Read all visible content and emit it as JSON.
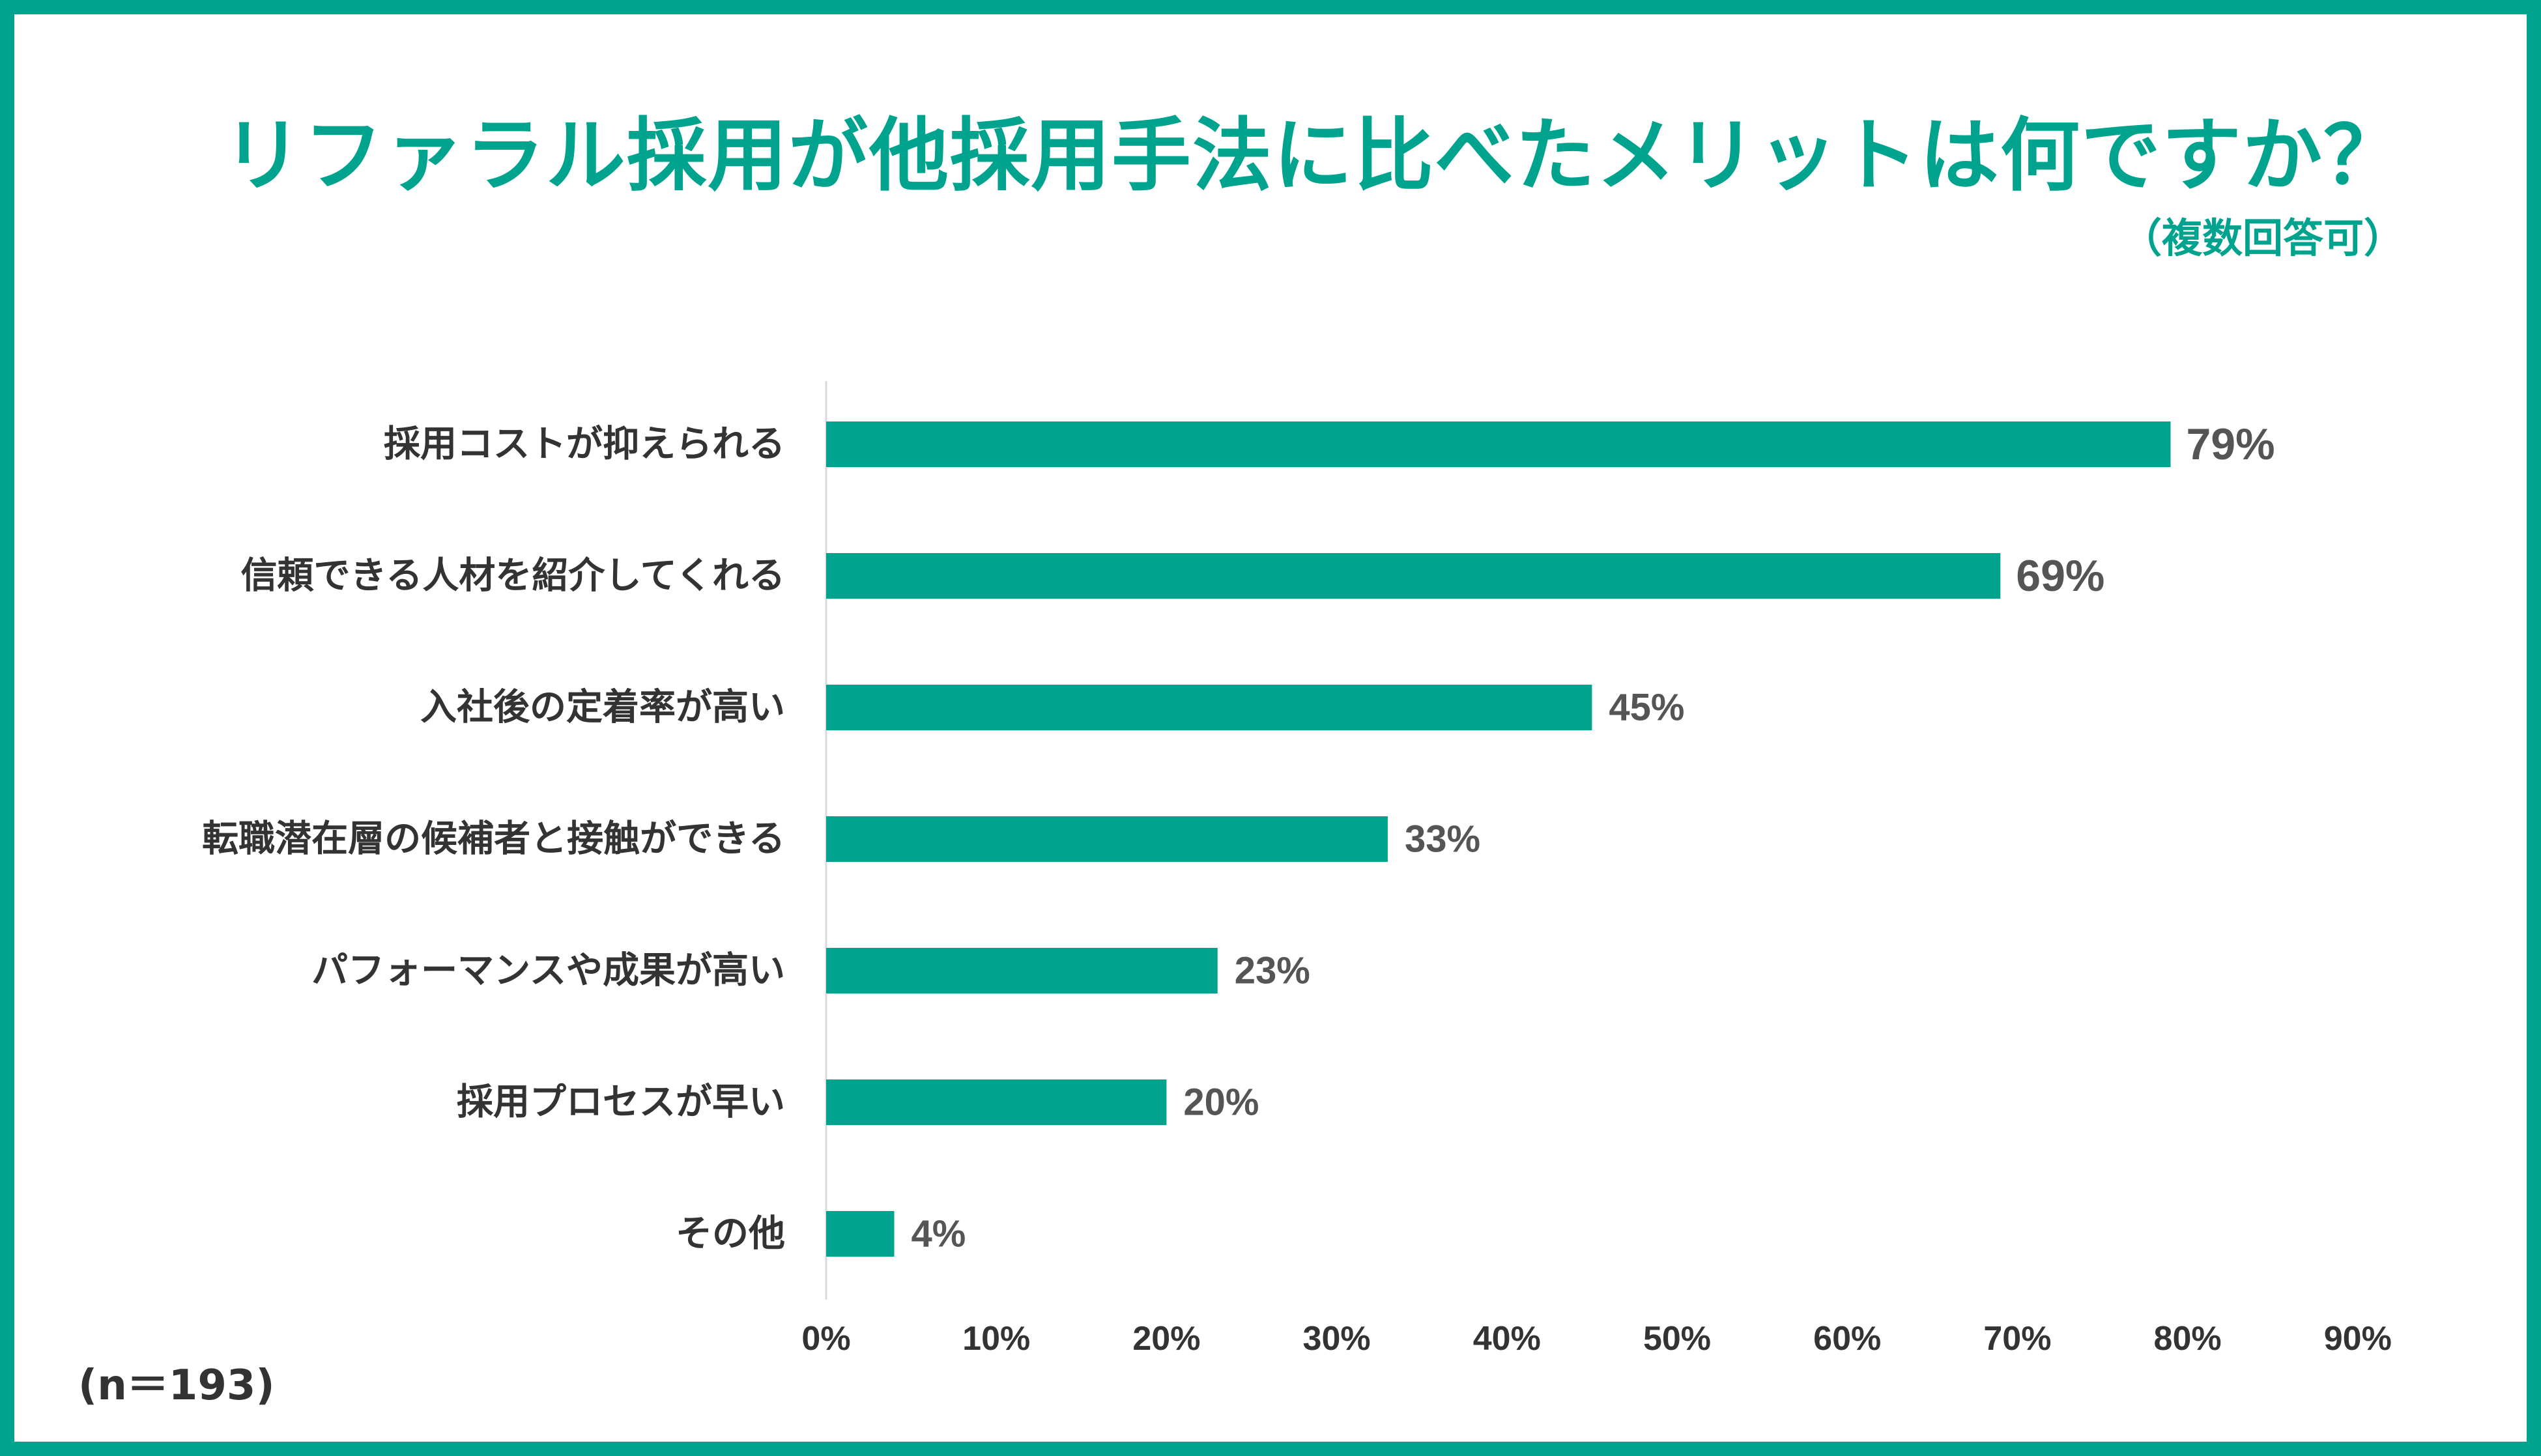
{
  "note": "(n＝193)",
  "chart_data": {
    "type": "bar",
    "orientation": "horizontal",
    "title": "リファラル採用が他採用手法に比べたメリットは何ですか？",
    "subtitle": "（複数回答可）",
    "categories": [
      "採用コストが抑えられる",
      "信頼できる人材を紹介してくれる",
      "入社後の定着率が高い",
      "転職潜在層の候補者と接触ができる",
      "パフォーマンスや成果が高い",
      "採用プロセスが早い",
      "その他"
    ],
    "values": [
      79,
      69,
      45,
      33,
      23,
      20,
      4
    ],
    "value_labels": [
      "79%",
      "69%",
      "45%",
      "33%",
      "23%",
      "20%",
      "4%"
    ],
    "x_ticks": [
      "0%",
      "10%",
      "20%",
      "30%",
      "40%",
      "50%",
      "60%",
      "70%",
      "80%",
      "90%"
    ],
    "xlim": [
      0,
      90
    ],
    "grid": false,
    "bar_color": "#00a48e",
    "frame_color": "#00a48e"
  }
}
